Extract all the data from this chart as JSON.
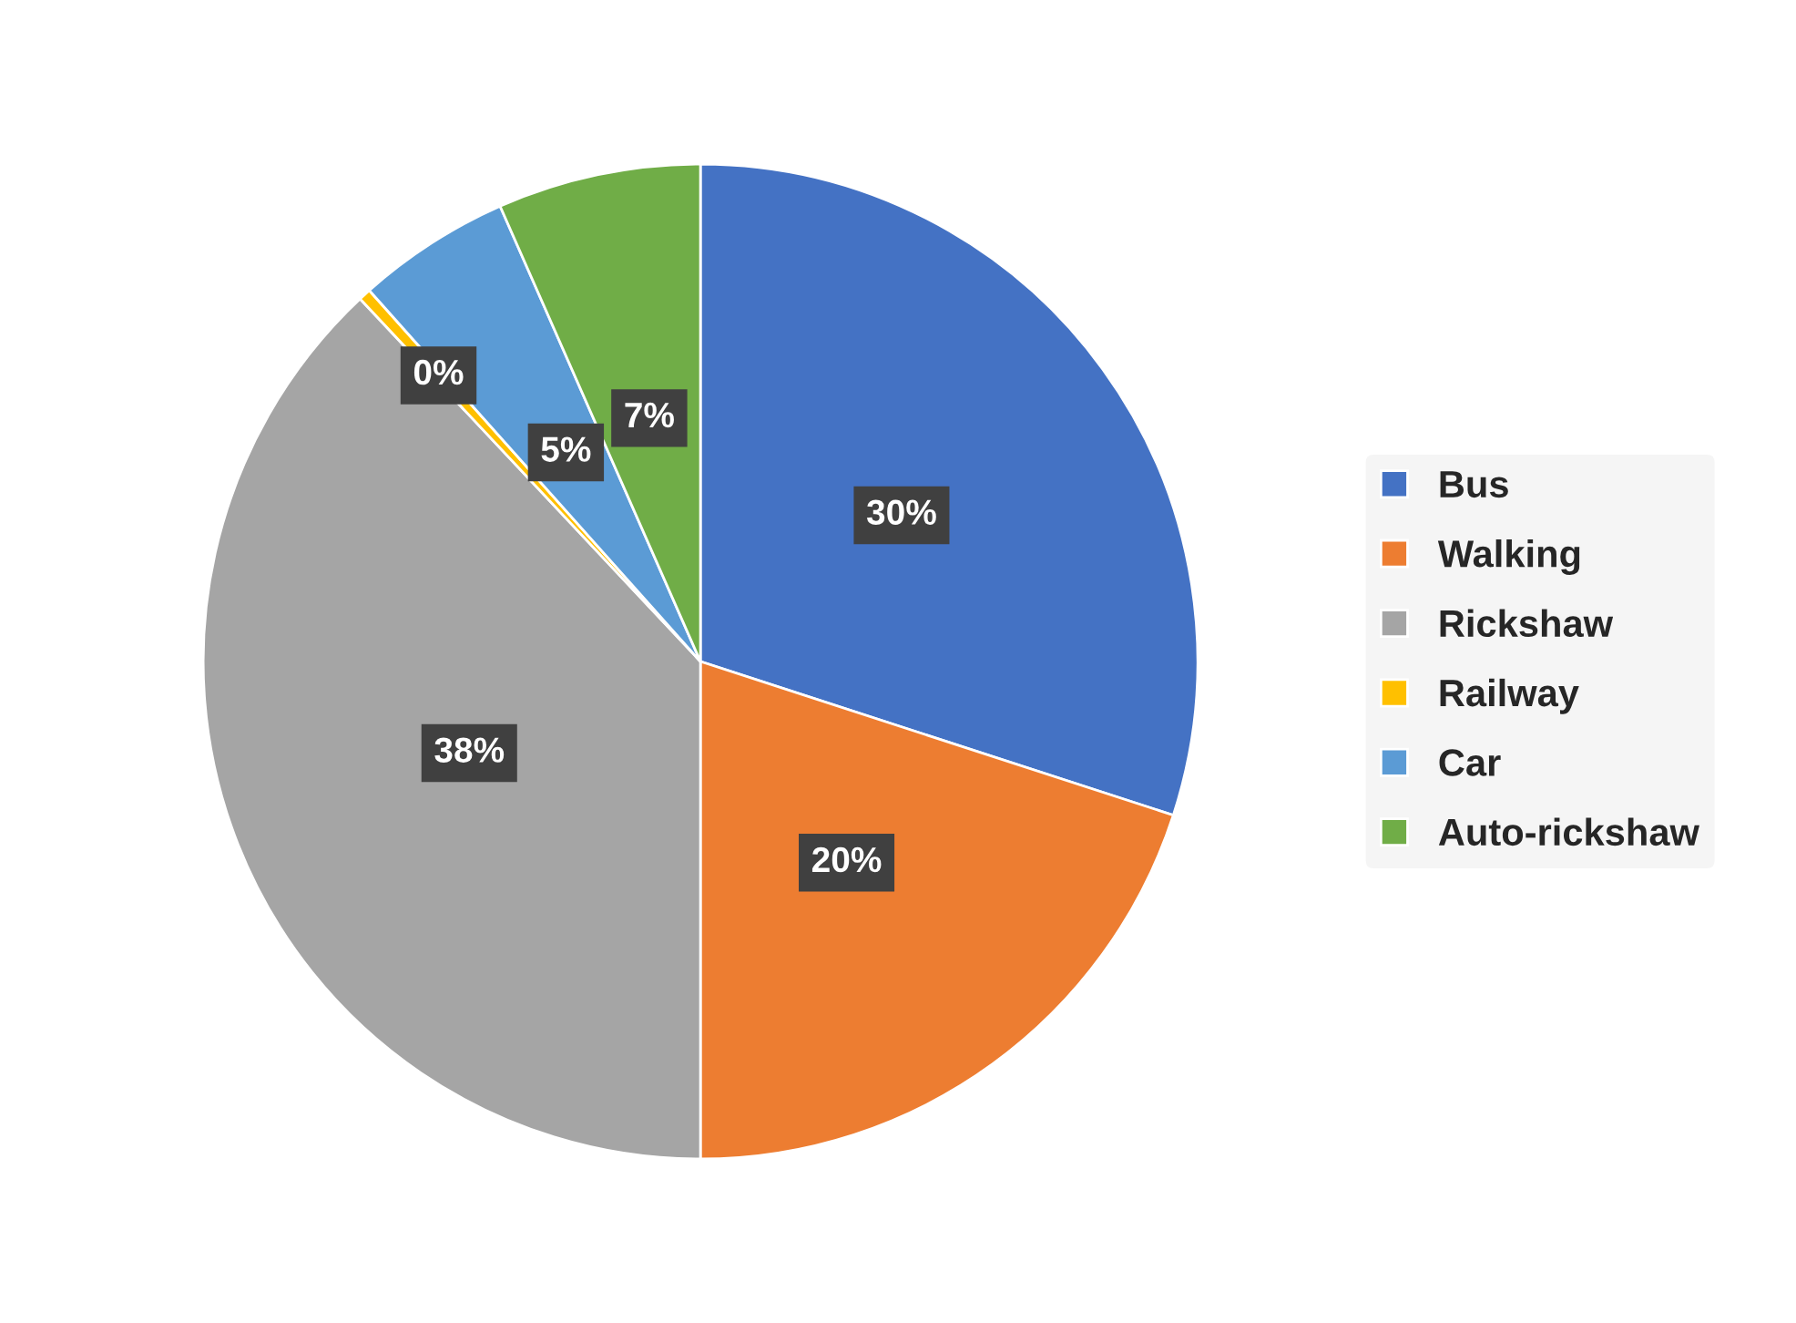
{
  "chart_data": {
    "type": "pie",
    "categories": [
      "Bus",
      "Walking",
      "Rickshaw",
      "Railway",
      "Car",
      "Auto-rickshaw"
    ],
    "values": [
      30,
      20,
      38,
      0.4,
      5,
      6.6
    ],
    "colors": [
      "#4472c4",
      "#ed7d31",
      "#a5a5a5",
      "#ffc000",
      "#5b9bd5",
      "#70ad47"
    ],
    "value_labels": [
      "30%",
      "20%",
      "38%",
      "0%",
      "5%",
      "7%"
    ],
    "legend": "right"
  }
}
